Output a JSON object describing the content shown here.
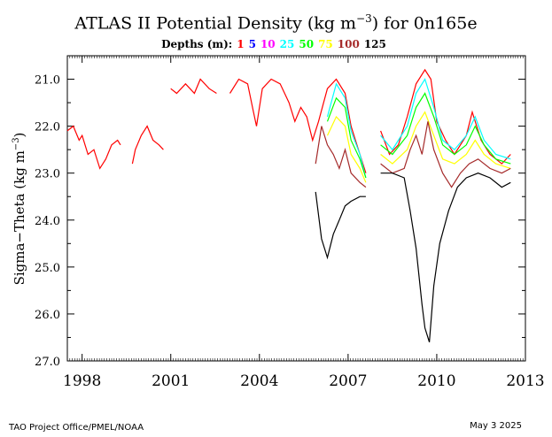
{
  "title_parts": {
    "pre": "ATLAS II Potential Density (kg m",
    "exp": "−3",
    "post": ") for 0n165e"
  },
  "legend": {
    "label": "Depths (m):",
    "depths": [
      {
        "label": "1",
        "color": "#ff0000"
      },
      {
        "label": "5",
        "color": "#0000ff"
      },
      {
        "label": "10",
        "color": "#ff00ff"
      },
      {
        "label": "25",
        "color": "#00ffff"
      },
      {
        "label": "50",
        "color": "#00ff00"
      },
      {
        "label": "75",
        "color": "#ffff00"
      },
      {
        "label": "100",
        "color": "#a52a2a"
      },
      {
        "label": "125",
        "color": "#000000"
      }
    ]
  },
  "ylabel_parts": {
    "pre": "Sigma−Theta (kg m",
    "exp": "−3",
    "post": ")"
  },
  "footer": {
    "left": "TAO Project Office/PMEL/NOAA",
    "right": "May  3 2025"
  },
  "chart_data": {
    "type": "line",
    "title": "ATLAS II Potential Density (kg m-3) for 0n165e",
    "ylabel": "Sigma-Theta (kg m-3)",
    "y_inverted": true,
    "ylim": [
      27.0,
      20.5
    ],
    "xlim": [
      1997.5,
      2013.0
    ],
    "x_ticks": [
      1998,
      2001,
      2004,
      2007,
      2010,
      2013
    ],
    "y_ticks": [
      "21.0",
      "22.0",
      "23.0",
      "24.0",
      "25.0",
      "26.0",
      "27.0"
    ],
    "series": [
      {
        "name": "1",
        "color": "#ff0000",
        "segments": [
          [
            [
              1997.5,
              22.1
            ],
            [
              1997.7,
              22.0
            ],
            [
              1997.9,
              22.3
            ],
            [
              1998.0,
              22.2
            ],
            [
              1998.2,
              22.6
            ],
            [
              1998.4,
              22.5
            ],
            [
              1998.6,
              22.9
            ],
            [
              1998.8,
              22.7
            ],
            [
              1999.0,
              22.4
            ],
            [
              1999.2,
              22.3
            ],
            [
              1999.3,
              22.4
            ]
          ],
          [
            [
              1999.7,
              22.8
            ],
            [
              1999.8,
              22.5
            ],
            [
              2000.0,
              22.2
            ],
            [
              2000.2,
              22.0
            ],
            [
              2000.4,
              22.3
            ],
            [
              2000.6,
              22.4
            ],
            [
              2000.75,
              22.5
            ]
          ],
          [
            [
              2001.0,
              21.2
            ],
            [
              2001.2,
              21.3
            ],
            [
              2001.5,
              21.1
            ],
            [
              2001.8,
              21.3
            ],
            [
              2002.0,
              21.0
            ],
            [
              2002.3,
              21.2
            ],
            [
              2002.55,
              21.3
            ]
          ],
          [
            [
              2003.0,
              21.3
            ],
            [
              2003.3,
              21.0
            ],
            [
              2003.6,
              21.1
            ],
            [
              2003.8,
              21.7
            ],
            [
              2003.9,
              22.0
            ],
            [
              2004.1,
              21.2
            ],
            [
              2004.4,
              21.0
            ],
            [
              2004.7,
              21.1
            ],
            [
              2005.0,
              21.5
            ],
            [
              2005.2,
              21.9
            ],
            [
              2005.4,
              21.6
            ],
            [
              2005.6,
              21.8
            ],
            [
              2005.8,
              22.3
            ],
            [
              2006.0,
              21.9
            ],
            [
              2006.3,
              21.2
            ],
            [
              2006.6,
              21.0
            ],
            [
              2006.9,
              21.3
            ],
            [
              2007.1,
              22.0
            ],
            [
              2007.4,
              22.6
            ],
            [
              2007.6,
              23.0
            ]
          ],
          [
            [
              2008.1,
              22.1
            ],
            [
              2008.4,
              22.6
            ],
            [
              2008.7,
              22.4
            ],
            [
              2009.0,
              21.8
            ],
            [
              2009.3,
              21.1
            ],
            [
              2009.6,
              20.8
            ],
            [
              2009.8,
              21.0
            ],
            [
              2010.0,
              21.9
            ],
            [
              2010.3,
              22.3
            ],
            [
              2010.6,
              22.6
            ],
            [
              2011.0,
              22.2
            ],
            [
              2011.2,
              21.7
            ],
            [
              2011.5,
              22.3
            ],
            [
              2011.8,
              22.6
            ],
            [
              2012.2,
              22.8
            ],
            [
              2012.5,
              22.6
            ]
          ]
        ]
      },
      {
        "name": "25",
        "color": "#00ffff",
        "segments": [
          [
            [
              2006.3,
              21.8
            ],
            [
              2006.6,
              21.1
            ],
            [
              2006.9,
              21.4
            ],
            [
              2007.1,
              22.1
            ],
            [
              2007.4,
              22.6
            ],
            [
              2007.6,
              23.1
            ]
          ],
          [
            [
              2008.1,
              22.2
            ],
            [
              2008.5,
              22.5
            ],
            [
              2009.0,
              22.0
            ],
            [
              2009.3,
              21.3
            ],
            [
              2009.6,
              21.0
            ],
            [
              2009.9,
              21.6
            ],
            [
              2010.2,
              22.3
            ],
            [
              2010.6,
              22.5
            ],
            [
              2011.0,
              22.2
            ],
            [
              2011.3,
              21.8
            ],
            [
              2011.6,
              22.3
            ],
            [
              2012.0,
              22.6
            ],
            [
              2012.5,
              22.7
            ]
          ]
        ]
      },
      {
        "name": "50",
        "color": "#00ff00",
        "segments": [
          [
            [
              2006.3,
              21.9
            ],
            [
              2006.6,
              21.4
            ],
            [
              2006.9,
              21.6
            ],
            [
              2007.1,
              22.3
            ],
            [
              2007.4,
              22.7
            ],
            [
              2007.6,
              23.1
            ]
          ],
          [
            [
              2008.1,
              22.4
            ],
            [
              2008.5,
              22.6
            ],
            [
              2009.0,
              22.2
            ],
            [
              2009.3,
              21.6
            ],
            [
              2009.6,
              21.3
            ],
            [
              2009.9,
              21.8
            ],
            [
              2010.2,
              22.4
            ],
            [
              2010.6,
              22.6
            ],
            [
              2011.0,
              22.4
            ],
            [
              2011.3,
              22.0
            ],
            [
              2011.6,
              22.4
            ],
            [
              2012.0,
              22.7
            ],
            [
              2012.5,
              22.8
            ]
          ]
        ]
      },
      {
        "name": "75",
        "color": "#ffff00",
        "segments": [
          [
            [
              2006.3,
              22.2
            ],
            [
              2006.6,
              21.8
            ],
            [
              2006.9,
              22.0
            ],
            [
              2007.1,
              22.6
            ],
            [
              2007.4,
              22.9
            ],
            [
              2007.6,
              23.2
            ]
          ],
          [
            [
              2008.1,
              22.6
            ],
            [
              2008.5,
              22.8
            ],
            [
              2009.0,
              22.5
            ],
            [
              2009.3,
              22.0
            ],
            [
              2009.6,
              21.7
            ],
            [
              2009.9,
              22.2
            ],
            [
              2010.2,
              22.7
            ],
            [
              2010.6,
              22.8
            ],
            [
              2011.0,
              22.6
            ],
            [
              2011.3,
              22.3
            ],
            [
              2011.6,
              22.6
            ],
            [
              2012.0,
              22.8
            ],
            [
              2012.5,
              22.9
            ]
          ]
        ]
      },
      {
        "name": "100",
        "color": "#a52a2a",
        "segments": [
          [
            [
              2005.9,
              22.8
            ],
            [
              2006.1,
              22.0
            ],
            [
              2006.3,
              22.4
            ],
            [
              2006.5,
              22.6
            ],
            [
              2006.7,
              22.9
            ],
            [
              2006.9,
              22.5
            ],
            [
              2007.1,
              23.0
            ],
            [
              2007.4,
              23.2
            ],
            [
              2007.6,
              23.3
            ]
          ],
          [
            [
              2008.1,
              22.8
            ],
            [
              2008.5,
              23.0
            ],
            [
              2008.9,
              22.9
            ],
            [
              2009.1,
              22.5
            ],
            [
              2009.3,
              22.2
            ],
            [
              2009.5,
              22.6
            ],
            [
              2009.7,
              21.9
            ],
            [
              2009.9,
              22.5
            ],
            [
              2010.2,
              23.0
            ],
            [
              2010.5,
              23.3
            ],
            [
              2010.8,
              23.0
            ],
            [
              2011.1,
              22.8
            ],
            [
              2011.4,
              22.7
            ],
            [
              2011.8,
              22.9
            ],
            [
              2012.2,
              23.0
            ],
            [
              2012.5,
              22.9
            ]
          ]
        ]
      },
      {
        "name": "125",
        "color": "#000000",
        "segments": [
          [
            [
              2005.9,
              23.4
            ],
            [
              2006.1,
              24.4
            ],
            [
              2006.3,
              24.8
            ],
            [
              2006.5,
              24.3
            ],
            [
              2006.7,
              24.0
            ],
            [
              2006.9,
              23.7
            ],
            [
              2007.1,
              23.6
            ],
            [
              2007.4,
              23.5
            ],
            [
              2007.6,
              23.5
            ]
          ],
          [
            [
              2008.1,
              23.0
            ],
            [
              2008.5,
              23.0
            ],
            [
              2008.9,
              23.1
            ],
            [
              2009.1,
              23.8
            ],
            [
              2009.3,
              24.6
            ],
            [
              2009.5,
              25.8
            ],
            [
              2009.6,
              26.3
            ],
            [
              2009.75,
              26.6
            ],
            [
              2009.9,
              25.4
            ],
            [
              2010.1,
              24.5
            ],
            [
              2010.4,
              23.8
            ],
            [
              2010.7,
              23.3
            ],
            [
              2011.0,
              23.1
            ],
            [
              2011.4,
              23.0
            ],
            [
              2011.8,
              23.1
            ],
            [
              2012.2,
              23.3
            ],
            [
              2012.5,
              23.2
            ]
          ]
        ]
      }
    ]
  }
}
